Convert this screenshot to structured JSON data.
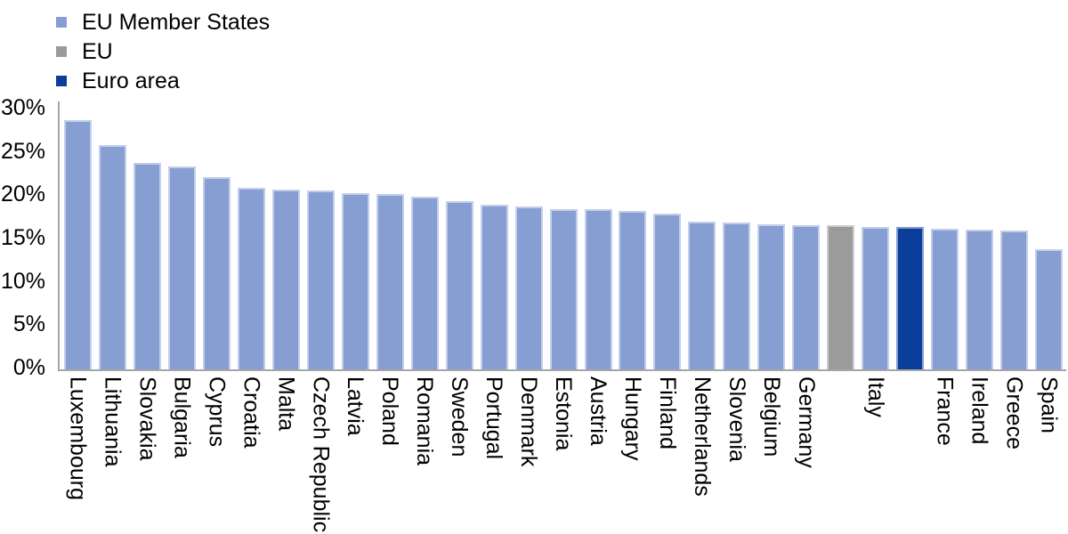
{
  "legend": {
    "items": [
      {
        "label": "EU Member States",
        "series": "eu_member",
        "color": "#879ED3"
      },
      {
        "label": "EU",
        "series": "eu",
        "color": "#9B9B9B"
      },
      {
        "label": "Euro area",
        "series": "euro_area",
        "color": "#0B3D9B"
      }
    ]
  },
  "chart_data": {
    "type": "bar",
    "title": "",
    "xlabel": "",
    "ylabel": "",
    "unit": "%",
    "ylim": [
      0,
      30
    ],
    "ytick_step": 5,
    "yticks": [
      "30%",
      "25%",
      "20%",
      "15%",
      "10%",
      "5%",
      "0%"
    ],
    "grid": false,
    "legend_position": "top-left",
    "series_colors": {
      "eu_member": "#879ED3",
      "eu": "#9B9B9B",
      "euro_area": "#0B3D9B"
    },
    "bars": [
      {
        "name": "Luxembourg",
        "axis_label": "Luxembourg",
        "value": 28.5,
        "series": "eu_member"
      },
      {
        "name": "Lithuania",
        "axis_label": "Lithuania",
        "value": 25.6,
        "series": "eu_member"
      },
      {
        "name": "Slovakia",
        "axis_label": "Slovakia",
        "value": 23.6,
        "series": "eu_member"
      },
      {
        "name": "Bulgaria",
        "axis_label": "Bulgaria",
        "value": 23.2,
        "series": "eu_member"
      },
      {
        "name": "Cyprus",
        "axis_label": "Cyprus",
        "value": 22.0,
        "series": "eu_member"
      },
      {
        "name": "Croatia",
        "axis_label": "Croatia",
        "value": 20.8,
        "series": "eu_member"
      },
      {
        "name": "Malta",
        "axis_label": "Malta",
        "value": 20.6,
        "series": "eu_member"
      },
      {
        "name": "Czech Republic",
        "axis_label": "Czech Republic",
        "value": 20.5,
        "series": "eu_member"
      },
      {
        "name": "Latvia",
        "axis_label": "Latvia",
        "value": 20.2,
        "series": "eu_member"
      },
      {
        "name": "Poland",
        "axis_label": "Poland",
        "value": 20.1,
        "series": "eu_member"
      },
      {
        "name": "Romania",
        "axis_label": "Romania",
        "value": 19.8,
        "series": "eu_member"
      },
      {
        "name": "Sweden",
        "axis_label": "Sweden",
        "value": 19.3,
        "series": "eu_member"
      },
      {
        "name": "Portugal",
        "axis_label": "Portugal",
        "value": 18.9,
        "series": "eu_member"
      },
      {
        "name": "Denmark",
        "axis_label": "Denmark",
        "value": 18.7,
        "series": "eu_member"
      },
      {
        "name": "Estonia",
        "axis_label": "Estonia",
        "value": 18.4,
        "series": "eu_member"
      },
      {
        "name": "Austria",
        "axis_label": "Austria",
        "value": 18.4,
        "series": "eu_member"
      },
      {
        "name": "Hungary",
        "axis_label": "Hungary",
        "value": 18.1,
        "series": "eu_member"
      },
      {
        "name": "Finland",
        "axis_label": "Finland",
        "value": 17.8,
        "series": "eu_member"
      },
      {
        "name": "Netherlands",
        "axis_label": "Netherlands",
        "value": 16.9,
        "series": "eu_member"
      },
      {
        "name": "Slovenia",
        "axis_label": "Slovenia",
        "value": 16.8,
        "series": "eu_member"
      },
      {
        "name": "Belgium",
        "axis_label": "Belgium",
        "value": 16.6,
        "series": "eu_member"
      },
      {
        "name": "Germany",
        "axis_label": "Germany",
        "value": 16.5,
        "series": "eu_member"
      },
      {
        "name": "EU",
        "axis_label": "",
        "value": 16.5,
        "series": "eu"
      },
      {
        "name": "Italy",
        "axis_label": "Italy",
        "value": 16.3,
        "series": "eu_member"
      },
      {
        "name": "Euro area",
        "axis_label": "",
        "value": 16.3,
        "series": "euro_area"
      },
      {
        "name": "France",
        "axis_label": "France",
        "value": 16.1,
        "series": "eu_member"
      },
      {
        "name": "Ireland",
        "axis_label": "Ireland",
        "value": 16.0,
        "series": "eu_member"
      },
      {
        "name": "Greece",
        "axis_label": "Greece",
        "value": 15.9,
        "series": "eu_member"
      },
      {
        "name": "Spain",
        "axis_label": "Spain",
        "value": 13.8,
        "series": "eu_member"
      }
    ]
  }
}
